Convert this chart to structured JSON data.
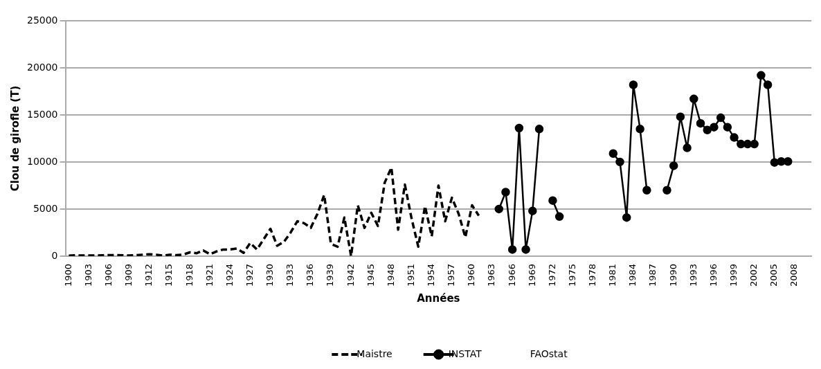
{
  "chart_data": {
    "type": "line",
    "ylabel": "Clou de girofle (T)",
    "xlabel": "Années",
    "categories": [
      "1900",
      null,
      null,
      "1903",
      null,
      null,
      "1906",
      null,
      null,
      "1909",
      null,
      null,
      "1912",
      null,
      null,
      "1915",
      null,
      null,
      "1918",
      null,
      null,
      "1921",
      null,
      null,
      "1924",
      null,
      null,
      "1927",
      null,
      null,
      "1930",
      null,
      null,
      "1933",
      null,
      null,
      "1936",
      null,
      null,
      "1939",
      null,
      null,
      "1942",
      null,
      null,
      "1945",
      null,
      null,
      "1948",
      null,
      null,
      "1951",
      null,
      null,
      "1954",
      null,
      null,
      "1957",
      null,
      null,
      "1960",
      null,
      null,
      "1963",
      null,
      null,
      "1966",
      null,
      null,
      "1969",
      null,
      null,
      "1972",
      null,
      null,
      "1975",
      null,
      null,
      "1978",
      null,
      null,
      "1981",
      null,
      null,
      "1984",
      null,
      null,
      "1987",
      null,
      null,
      "1990",
      null,
      null,
      "1993",
      null,
      null,
      "1996",
      null,
      null,
      "1999",
      null,
      null,
      "2002",
      null,
      null,
      "2005",
      null,
      null,
      "2008",
      null,
      null
    ],
    "series": [
      {
        "name": "Maistre",
        "color": "#000000",
        "line_style": "dashed",
        "marker": "none",
        "values": [
          50,
          80,
          60,
          60,
          60,
          80,
          100,
          100,
          80,
          60,
          100,
          150,
          200,
          150,
          50,
          150,
          100,
          150,
          400,
          300,
          600,
          200,
          500,
          700,
          700,
          800,
          350,
          1400,
          700,
          1800,
          2900,
          1100,
          1500,
          2500,
          3700,
          3500,
          3000,
          4500,
          6500,
          1300,
          1000,
          4100,
          0,
          5400,
          3000,
          4600,
          3200,
          7800,
          9400,
          2800,
          7600,
          4000,
          1000,
          5300,
          2100,
          7500,
          3700,
          6200,
          4500,
          2000,
          5400,
          4300,
          null,
          null,
          null,
          null,
          null,
          null,
          null,
          null,
          null,
          null,
          null,
          null,
          null,
          null,
          null,
          null,
          null,
          null,
          null,
          null,
          null,
          null,
          null,
          null,
          null,
          null,
          null,
          null,
          null,
          null,
          null,
          null,
          null,
          null,
          null,
          null,
          null,
          null,
          null,
          null,
          null,
          null,
          null,
          null,
          null,
          null,
          null,
          null,
          null
        ]
      },
      {
        "name": "INSTAT",
        "color": "#000000",
        "line_style": "solid",
        "marker": "circle",
        "values": [
          null,
          null,
          null,
          null,
          null,
          null,
          null,
          null,
          null,
          null,
          null,
          null,
          null,
          null,
          null,
          null,
          null,
          null,
          null,
          null,
          null,
          null,
          null,
          null,
          null,
          null,
          null,
          null,
          null,
          null,
          null,
          null,
          null,
          null,
          null,
          null,
          null,
          null,
          null,
          null,
          null,
          null,
          null,
          null,
          null,
          null,
          null,
          null,
          null,
          null,
          null,
          null,
          null,
          null,
          null,
          null,
          null,
          null,
          null,
          null,
          null,
          null,
          null,
          null,
          5000,
          6800,
          700,
          13600,
          700,
          4800,
          13500,
          null,
          5900,
          4200,
          null,
          null,
          null,
          null,
          null,
          null,
          null,
          10900,
          10000,
          4100,
          18200,
          13500,
          7000,
          null,
          null,
          7000,
          9600,
          14800,
          11500,
          16700,
          14100,
          13400,
          13700,
          14700,
          13700,
          12600,
          11900,
          11900,
          11900,
          19200,
          18200,
          9950,
          10050,
          10050,
          null,
          null,
          null
        ]
      }
    ],
    "annotations": [
      "FAOstat"
    ],
    "ylim": [
      0,
      25000
    ],
    "yticks": [
      0,
      5000,
      10000,
      15000,
      20000,
      25000
    ],
    "grid": "y",
    "legend": "bottom right"
  }
}
